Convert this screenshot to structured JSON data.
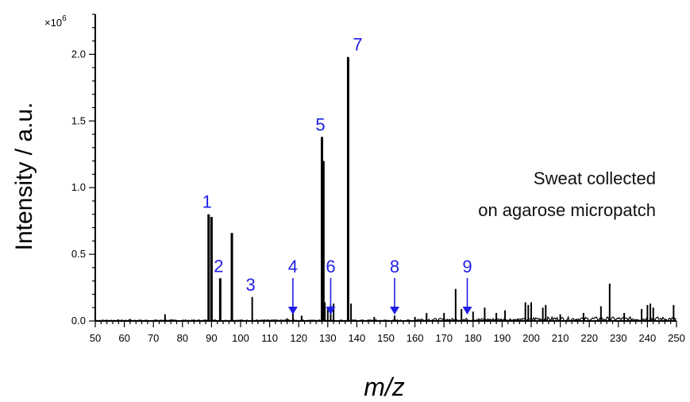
{
  "chart_data": {
    "type": "line",
    "title": "",
    "xlabel": "m/z",
    "ylabel": "Intensity / a.u.",
    "y_multiplier": "×10",
    "y_multiplier_exp": "6",
    "xlim": [
      50,
      250
    ],
    "ylim": [
      0,
      2.3
    ],
    "x_ticks": [
      50,
      60,
      70,
      80,
      90,
      100,
      110,
      120,
      130,
      140,
      150,
      160,
      170,
      180,
      190,
      200,
      210,
      220,
      230,
      240,
      250
    ],
    "x_tick_labels": [
      "50",
      "60",
      "70",
      "80",
      "90",
      "100",
      "110",
      "120",
      "130",
      "140",
      "150",
      "160",
      "170",
      "180",
      "190",
      "200",
      "210",
      "220",
      "230",
      "240",
      "250"
    ],
    "y_ticks": [
      0.0,
      0.5,
      1.0,
      1.5,
      2.0
    ],
    "y_tick_labels": [
      "0.0",
      "0.5",
      "1.0",
      "1.5",
      "2.0"
    ],
    "grid": false,
    "series": [
      {
        "x": [
          62,
          74,
          89,
          90,
          93,
          97,
          104,
          116,
          118,
          121,
          128,
          128.5,
          129,
          130,
          131,
          132,
          137,
          138,
          146,
          153,
          160,
          164,
          170,
          174,
          176,
          180,
          184,
          188,
          191,
          198,
          199,
          200,
          204,
          205,
          210,
          218,
          224,
          227,
          232,
          238,
          240,
          241,
          242,
          249
        ],
        "values": [
          0.015,
          0.05,
          0.8,
          0.78,
          0.32,
          0.66,
          0.18,
          0.02,
          0.06,
          0.04,
          1.38,
          1.2,
          0.14,
          0.1,
          0.12,
          0.13,
          1.98,
          0.13,
          0.03,
          0.04,
          0.03,
          0.06,
          0.06,
          0.24,
          0.09,
          0.07,
          0.1,
          0.06,
          0.08,
          0.14,
          0.12,
          0.14,
          0.1,
          0.12,
          0.05,
          0.06,
          0.11,
          0.28,
          0.06,
          0.09,
          0.12,
          0.13,
          0.1,
          0.12
        ]
      }
    ],
    "annotations": [
      {
        "label": "1",
        "x": 89,
        "y": 0.8,
        "arrow": false
      },
      {
        "label": "2",
        "x": 93,
        "y": 0.32,
        "arrow": false
      },
      {
        "label": "3",
        "x": 104,
        "y": 0.18,
        "arrow": false
      },
      {
        "label": "4",
        "x": 118,
        "y": 0.02,
        "arrow": true
      },
      {
        "label": "5",
        "x": 128,
        "y": 1.38,
        "arrow": false
      },
      {
        "label": "6",
        "x": 131,
        "y": 0.02,
        "arrow": true
      },
      {
        "label": "7",
        "x": 137,
        "y": 1.98,
        "arrow": false
      },
      {
        "label": "8",
        "x": 153,
        "y": 0.02,
        "arrow": true
      },
      {
        "label": "9",
        "x": 178,
        "y": 0.02,
        "arrow": true
      }
    ],
    "note_lines": [
      "Sweat collected",
      "on agarose micropatch"
    ]
  }
}
